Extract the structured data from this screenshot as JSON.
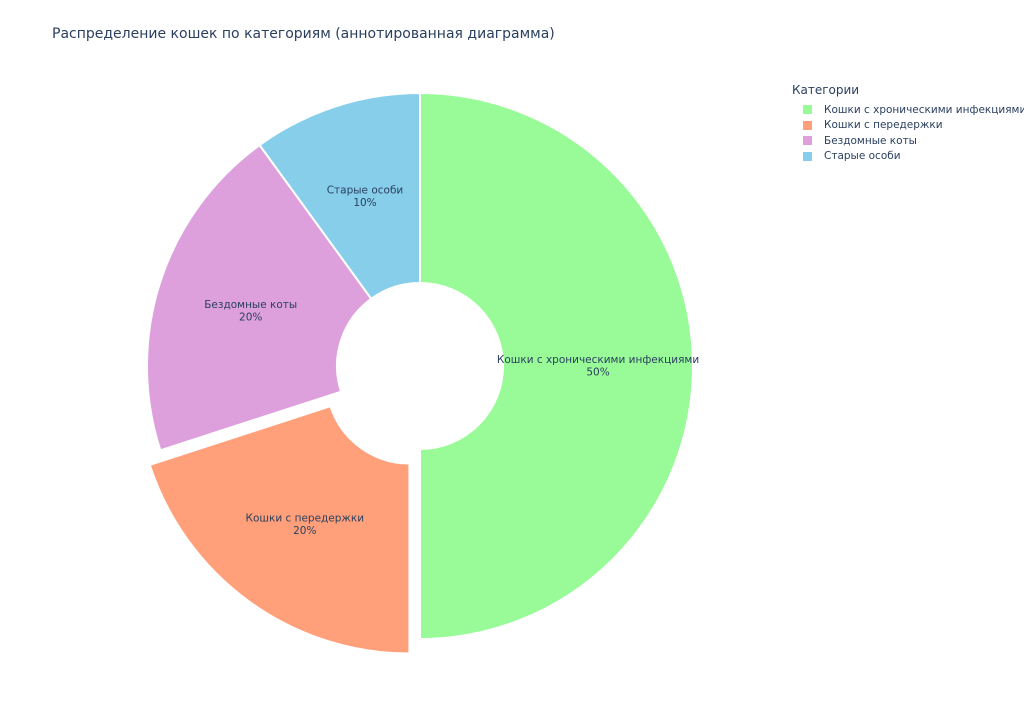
{
  "title": "Распределение кошек по категориям (аннотированная диаграмма)",
  "legend": {
    "title": "Категории"
  },
  "chart_data": {
    "type": "pie",
    "hole": true,
    "title": "Распределение кошек по категориям (аннотированная диаграмма)",
    "legend_title": "Категории",
    "legend_position": "top-right",
    "slices": [
      {
        "label": "Кошки с хроническими инфекциями",
        "value": 50,
        "percent_label": "50%",
        "color": "#98fb98",
        "pulled": false
      },
      {
        "label": "Кошки с передержки",
        "value": 20,
        "percent_label": "20%",
        "color": "#ffa07a",
        "pulled": true
      },
      {
        "label": "Бездомные коты",
        "value": 20,
        "percent_label": "20%",
        "color": "#dda0dd",
        "pulled": false
      },
      {
        "label": "Старые особи",
        "value": 10,
        "percent_label": "10%",
        "color": "#87ceeb",
        "pulled": false
      }
    ],
    "draw_order": [
      0,
      3,
      2,
      1
    ]
  }
}
